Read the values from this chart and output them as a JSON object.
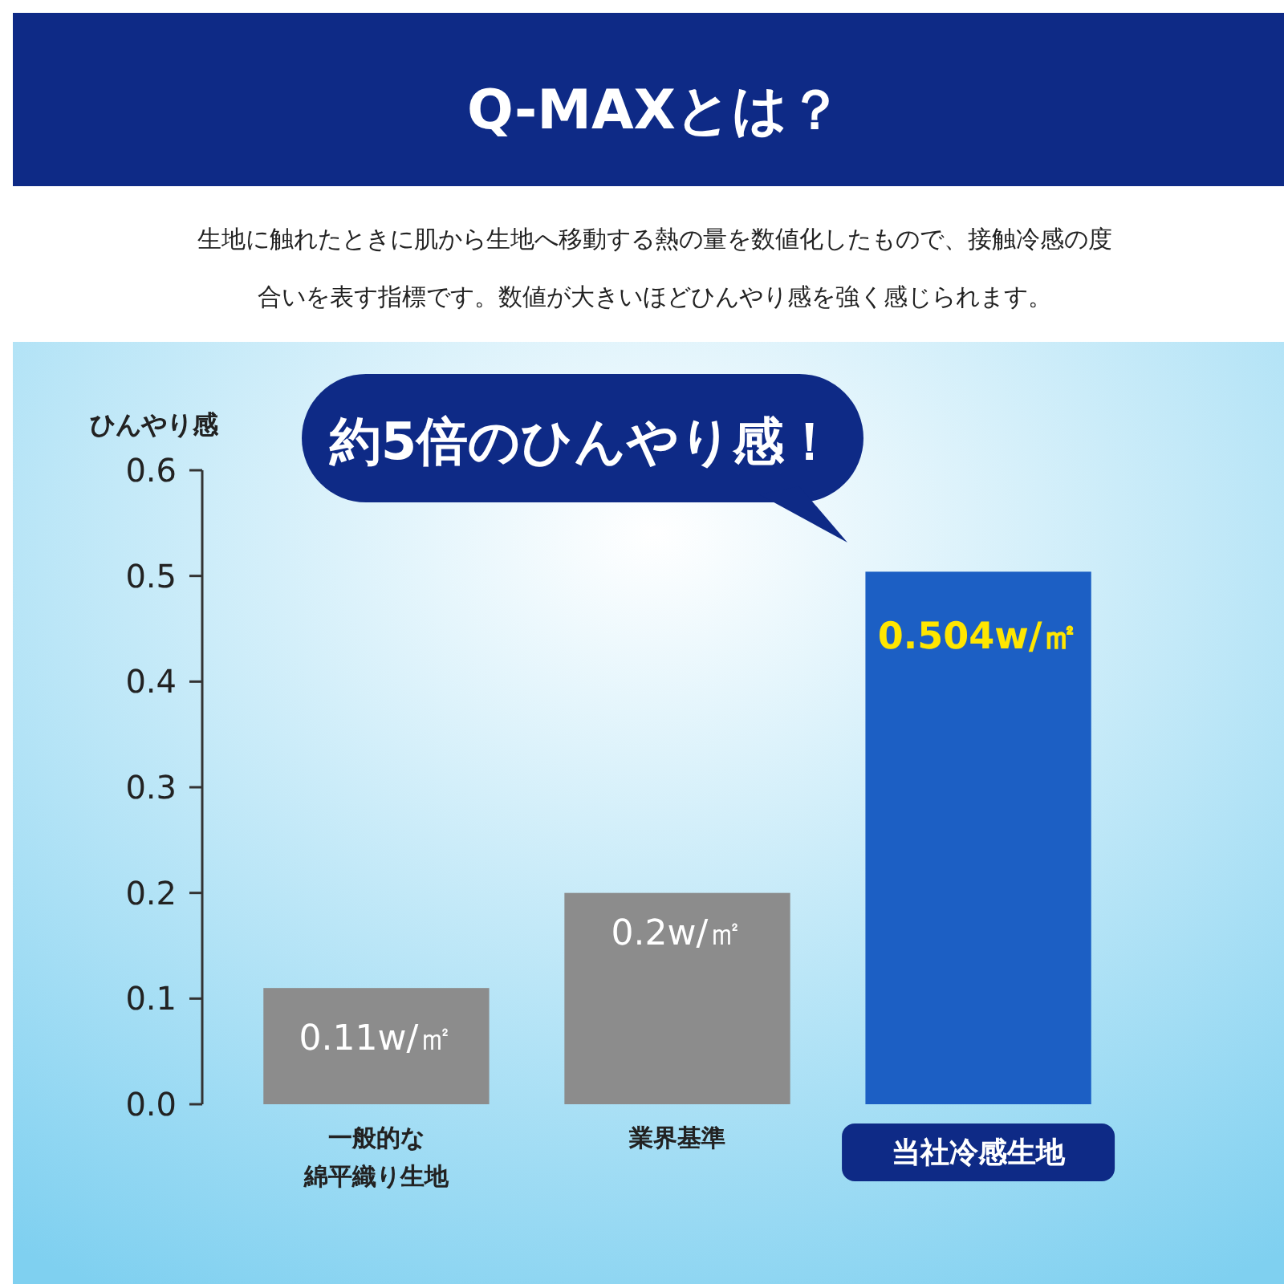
{
  "chart_data": {
    "type": "bar",
    "title": "Q-MAXとは？",
    "subtitle": "生地に触れたときに肌から生地へ移動する熱の量を数値化したもので、接触冷感の度合いを表す指標です。数値が大きいほどひんやり感を強く感じられます。",
    "ylabel": "ひんやり感",
    "annotations": [
      "約5倍のひんやり感！"
    ],
    "categories": [
      "一般的な綿平織り生地",
      "業界基準",
      "当社冷感生地"
    ],
    "values": [
      0.11,
      0.2,
      0.504
    ],
    "colors": [
      "#8c8c8c",
      "#8c8c8c",
      "#1c5fc4"
    ],
    "value_labels": [
      "0.11w/㎡",
      "0.2w/㎡",
      "0.504w/㎡"
    ],
    "ylim": [
      0,
      0.6
    ],
    "yticks": [
      {
        "value": 0,
        "label": "0.0"
      },
      0.1,
      0.2,
      0.3,
      0.4,
      0.5,
      0.6
    ],
    "grid": false
  }
}
